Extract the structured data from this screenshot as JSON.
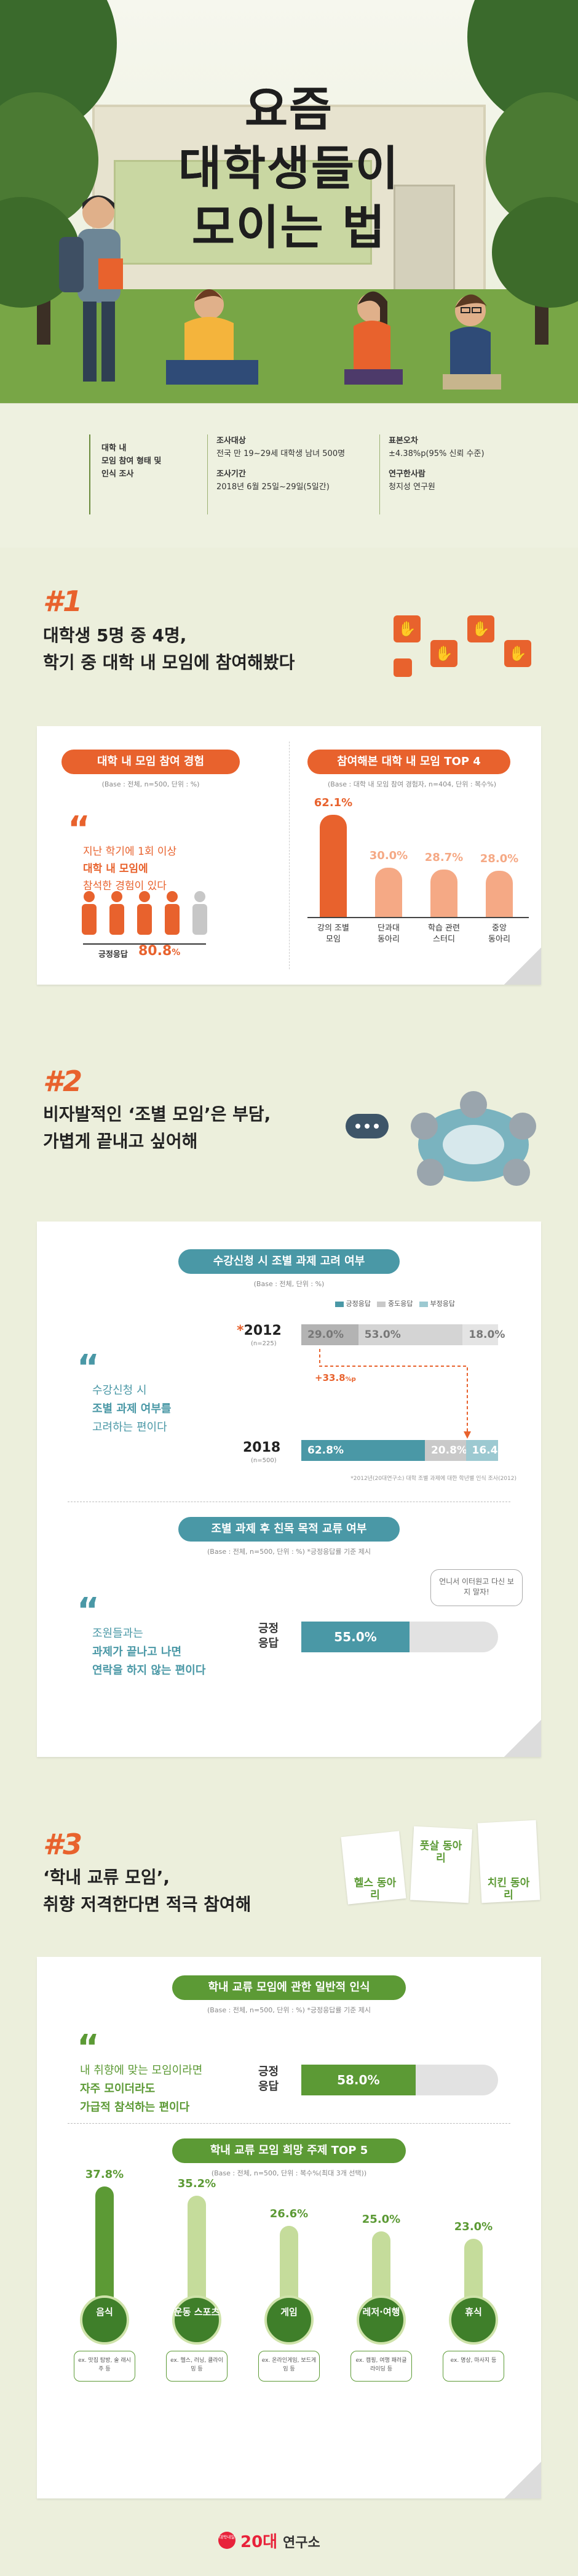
{
  "hero": {
    "title_line1": "요즘",
    "title_line2": "대학생들이",
    "title_line3": "모이는 법"
  },
  "info": {
    "topic": [
      "대학 내",
      "모임 참여 형태 및",
      "인식 조사"
    ],
    "target_label": "조사대상",
    "target_value": "전국 만 19~29세 대학생 남녀 500명",
    "period_label": "조사기간",
    "period_value": "2018년 6월 25일~29일(5일간)",
    "error_label": "표본오차",
    "error_value": "±4.38%p(95% 신뢰 수준)",
    "org_label": "연구한사람",
    "org_value": "청지성 연구원"
  },
  "s1": {
    "num": "#1",
    "head1": "대학생 5명 중 4명,",
    "head2": "학기 중 대학 내 모임에 참여해봤다",
    "left_pill": "대학 내 모임 참여 경험",
    "left_note": "(Base : 전체, n=500, 단위 : %)",
    "quote_line1": "지난 학기에 1회 이상",
    "quote_line2": "대학 내 모임에",
    "quote_line3": "참석한 경험이 있다",
    "stat_label": "긍정응답",
    "stat_value": "80.8",
    "stat_unit": "%",
    "right_pill": "참여해본 대학 내 모임 TOP 4",
    "right_note": "(Base : 대학 내 모임 참여 경험자, n=404, 단위 : 복수%)"
  },
  "s2": {
    "num": "#2",
    "head1": "비자발적인 ‘조별 모임’은 부담,",
    "head2": "가볍게 끝내고 싶어해",
    "pill1": "수강신청 시 조별 과제 고려 여부",
    "note1": "(Base : 전체, 단위 : %)",
    "legend": [
      "긍정응답",
      "중도응답",
      "부정응답"
    ],
    "quote1_line1": "수강신청 시",
    "quote1_line2": "조별 과제 여부를",
    "quote1_line3": "고려하는 편이다",
    "year1": "2012",
    "year1_mark": "*",
    "year1_n": "(n=225)",
    "year2": "2018",
    "year2_n": "(n=500)",
    "diff": "+33.8",
    "diff_unit": "%p",
    "footnote": "*2012년(20대연구소) 대학 조별 과제에 대한 학년별 인식 조사(2012)",
    "pill2": "조별 과제 후 친목 목적 교류 여부",
    "note2": "(Base : 전체, n=500, 단위 : %) *긍정응답률 기준 제시",
    "quote2_line1": "조원들과는",
    "quote2_line2": "과제가 끝나고 나면",
    "quote2_line3": "연락을 하지 않는 편이다",
    "bubble": "언니서 이터원고 다신 보지 말자!",
    "bar_label1": "긍정",
    "bar_label2": "응답",
    "bar_value": "55.0%"
  },
  "s3": {
    "num": "#3",
    "head1": "‘학내 교류 모임’,",
    "head2": "취향 저격한다면 적극 참여해",
    "sign1": "헬스 동아리",
    "sign2": "풋살 동아리",
    "sign3": "치킨 동아리",
    "pill1": "학내 교류 모임에 관한 일반적 인식",
    "note1": "(Base : 전체, n=500, 단위 : %) *긍정응답률 기준 제시",
    "quote_line1": "내 취향에 맞는 모임이라면",
    "quote_line2": "자주 모이더라도",
    "quote_line3": "가급적 참석하는 편이다",
    "bar_label1": "긍정",
    "bar_label2": "응답",
    "bar_value": "58.0%",
    "pill2": "학내 교류 모임 희망 주제 TOP 5",
    "note2": "(Base : 전체, n=500, 단위 : 복수%(최대 3개 선택))"
  },
  "footer": {
    "logo_small": "대학내일",
    "logo_big": "20대",
    "logo_text": "연구소"
  },
  "colors": {
    "orange": "#e8622d",
    "orange_light": "#f5a985",
    "teal": "#4a98a6",
    "teal_light": "#9cc9d1",
    "green": "#5c9a35",
    "green_light": "#c5dc9b",
    "gray": "#b9b9b9"
  },
  "chart_data": [
    {
      "type": "bar",
      "title": "참여해본 대학 내 모임 TOP 4",
      "categories": [
        "강의 조별 모임",
        "단과대 동아리",
        "학습 관련 스터디",
        "중앙 동아리"
      ],
      "values": [
        62.1,
        30.0,
        28.7,
        28.0
      ],
      "ylim": [
        0,
        70
      ]
    },
    {
      "type": "bar",
      "title": "수강신청 시 조별 과제 고려 여부",
      "categories": [
        "2012",
        "2018"
      ],
      "series": [
        {
          "name": "긍정응답",
          "values": [
            29.0,
            62.8
          ]
        },
        {
          "name": "중도응답",
          "values": [
            53.0,
            20.8
          ]
        },
        {
          "name": "부정응답",
          "values": [
            18.0,
            16.4
          ]
        }
      ]
    },
    {
      "type": "bar",
      "title": "조별 과제 후 친목 목적 교류 여부",
      "categories": [
        "긍정응답"
      ],
      "values": [
        55.0
      ],
      "ylim": [
        0,
        100
      ]
    },
    {
      "type": "bar",
      "title": "학내 교류 모임에 관한 일반적 인식",
      "categories": [
        "긍정응답"
      ],
      "values": [
        58.0
      ],
      "ylim": [
        0,
        100
      ]
    },
    {
      "type": "bar",
      "title": "학내 교류 모임 희망 주제 TOP 5",
      "categories": [
        "음식",
        "운동 스포츠",
        "게임",
        "레저·여행",
        "휴식"
      ],
      "examples": [
        "ex. 맛집 탐방, 술 래시주 등",
        "ex. 헬스, 러닝, 클라이밍 등",
        "ex. 온라인게임, 보드게임 등",
        "ex. 캠핑, 여행 패러글라이딩 등",
        "ex. 명상, 마사지 등"
      ],
      "values": [
        37.8,
        35.2,
        26.6,
        25.0,
        23.0
      ],
      "ylim": [
        0,
        40
      ]
    }
  ]
}
